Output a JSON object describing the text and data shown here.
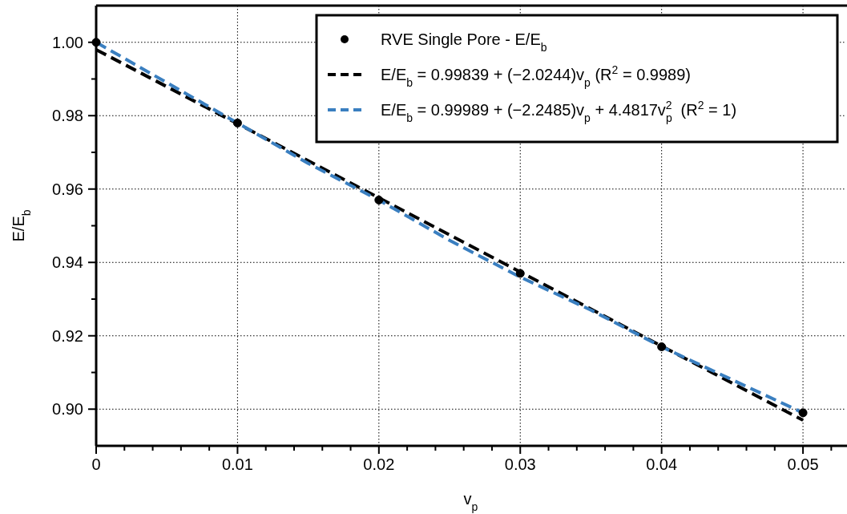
{
  "chart_data": {
    "type": "line",
    "xlabel": "v$_{p}$",
    "ylabel": "E/E$_{b}$",
    "xlim": [
      0,
      0.053
    ],
    "ylim": [
      0.89,
      1.01
    ],
    "xticks": [
      0,
      {
        "value": 0.002,
        "label": null
      },
      {
        "value": 0.004,
        "label": null
      },
      {
        "value": 0.006,
        "label": null
      },
      {
        "value": 0.008,
        "label": null
      },
      0.01,
      {
        "value": 0.012,
        "label": null
      },
      {
        "value": 0.014,
        "label": null
      },
      {
        "value": 0.016,
        "label": null
      },
      {
        "value": 0.018,
        "label": null
      },
      0.02,
      {
        "value": 0.022,
        "label": null
      },
      {
        "value": 0.024,
        "label": null
      },
      {
        "value": 0.026,
        "label": null
      },
      {
        "value": 0.028,
        "label": null
      },
      0.03,
      {
        "value": 0.032,
        "label": null
      },
      {
        "value": 0.034,
        "label": null
      },
      {
        "value": 0.036,
        "label": null
      },
      {
        "value": 0.038,
        "label": null
      },
      0.04,
      {
        "value": 0.042,
        "label": null
      },
      {
        "value": 0.044,
        "label": null
      },
      {
        "value": 0.046,
        "label": null
      },
      {
        "value": 0.048,
        "label": null
      },
      0.05,
      {
        "value": 0.052,
        "label": null
      }
    ],
    "yticks": [
      {
        "value": 0.9,
        "label": "0.90"
      },
      {
        "value": 0.91,
        "label": null
      },
      0.92,
      {
        "value": 0.93,
        "label": null
      },
      0.94,
      {
        "value": 0.95,
        "label": null
      },
      0.96,
      {
        "value": 0.97,
        "label": null
      },
      0.98,
      {
        "value": 0.99,
        "label": null
      },
      {
        "value": 1.0,
        "label": "1.00"
      }
    ],
    "grid": true,
    "legend": "top right",
    "series": [
      {
        "type": "scatter",
        "name": "RVE Single Pore - E/E$_{b}$",
        "color": "#000000",
        "marker": "circle",
        "x": [
          0,
          0.01,
          0.02,
          0.03,
          0.04,
          0.05
        ],
        "values": [
          1.0,
          0.978,
          0.957,
          0.937,
          0.917,
          0.899
        ]
      },
      {
        "name": "E/E$_{b}$ = 0.99839 + (−2.0244)v$_{p}$ (R$^{2}$ = 0.9989)",
        "color": "#000000",
        "marker": "none",
        "line_style": "dashed",
        "x": [
          0,
          0.05
        ],
        "values": [
          0.998,
          0.897
        ]
      },
      {
        "name": "E/E$_{b}$ = 0.99989 + (−2.2485)v$_{p}$ + 4.4817v$_{p}$$^{2}$  (R$^{2}$ = 1)",
        "color": "#3a7fc0",
        "marker": "none",
        "line_style": "dashed",
        "x": [
          0,
          0.005,
          0.01,
          0.015,
          0.02,
          0.025,
          0.03,
          0.035,
          0.04,
          0.045,
          0.05
        ],
        "values": [
          1.0,
          0.989,
          0.978,
          0.967,
          0.957,
          0.946,
          0.936,
          0.927,
          0.917,
          0.908,
          0.899
        ]
      }
    ]
  }
}
